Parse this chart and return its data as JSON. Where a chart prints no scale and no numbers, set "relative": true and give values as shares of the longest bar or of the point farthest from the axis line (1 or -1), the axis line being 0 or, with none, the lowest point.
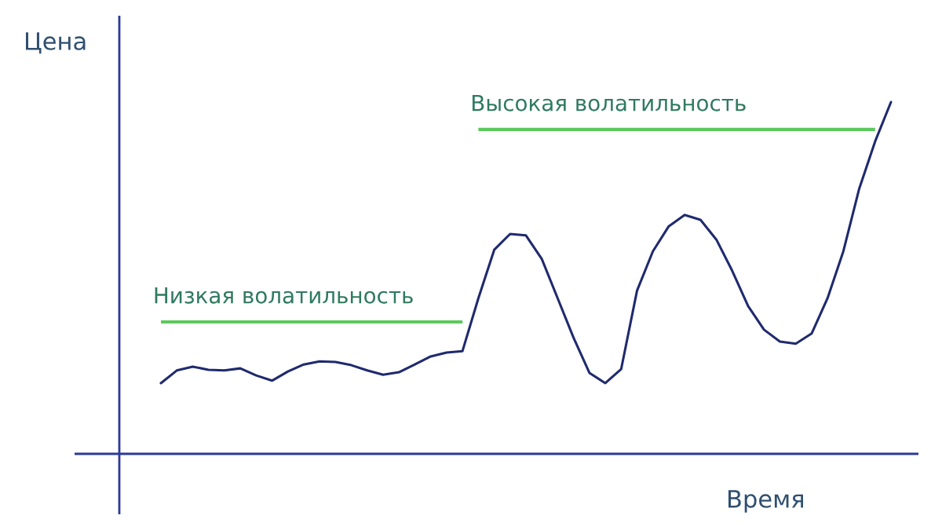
{
  "chart_data": {
    "type": "line",
    "relative": true,
    "xlabel": "Время",
    "ylabel": "Цена",
    "categories": [
      null,
      null,
      null,
      null,
      null,
      null,
      null,
      null,
      null,
      null,
      null,
      null,
      null,
      null,
      null,
      null,
      null,
      null,
      null,
      null,
      null,
      null,
      null,
      null,
      null,
      null,
      null,
      null,
      null,
      null,
      null,
      null,
      null,
      null,
      null,
      null,
      null,
      null,
      null,
      null,
      null,
      null,
      null,
      null,
      null,
      null,
      null
    ],
    "series": [
      {
        "color": "#1f2a6e",
        "values": [
          0.201,
          0.237,
          0.248,
          0.239,
          0.237,
          0.243,
          0.223,
          0.208,
          0.234,
          0.254,
          0.263,
          0.261,
          0.252,
          0.237,
          0.225,
          0.232,
          0.254,
          0.277,
          0.288,
          0.292,
          0.442,
          0.58,
          0.625,
          0.621,
          0.554,
          0.442,
          0.33,
          0.23,
          0.201,
          0.241,
          0.464,
          0.576,
          0.647,
          0.679,
          0.665,
          0.609,
          0.52,
          0.42,
          0.353,
          0.319,
          0.313,
          0.342,
          0.442,
          0.576,
          0.754,
          0.888,
          1.0
        ]
      },
      {
        "name": "Низкая волатильность",
        "color": "#5cc85c",
        "values": [
          0.375,
          0.375,
          0.375,
          0.375,
          0.375,
          0.375,
          0.375,
          0.375,
          0.375,
          0.375,
          0.375,
          0.375,
          0.375,
          0.375,
          0.375,
          0.375,
          0.375,
          0.375,
          0.375,
          0.375,
          null,
          null,
          null,
          null,
          null,
          null,
          null,
          null,
          null,
          null,
          null,
          null,
          null,
          null,
          null,
          null,
          null,
          null,
          null,
          null,
          null,
          null,
          null,
          null,
          null,
          null,
          null
        ]
      },
      {
        "name": "Высокая волатильность",
        "color": "#5cc85c",
        "values": [
          null,
          null,
          null,
          null,
          null,
          null,
          null,
          null,
          null,
          null,
          null,
          null,
          null,
          null,
          null,
          null,
          null,
          null,
          null,
          null,
          0.922,
          0.922,
          0.922,
          0.922,
          0.922,
          0.922,
          0.922,
          0.922,
          0.922,
          0.922,
          0.922,
          0.922,
          0.922,
          0.922,
          0.922,
          0.922,
          0.922,
          0.922,
          0.922,
          0.922,
          0.922,
          0.922,
          0.922,
          0.922,
          0.922,
          0.922,
          null
        ]
      }
    ]
  }
}
